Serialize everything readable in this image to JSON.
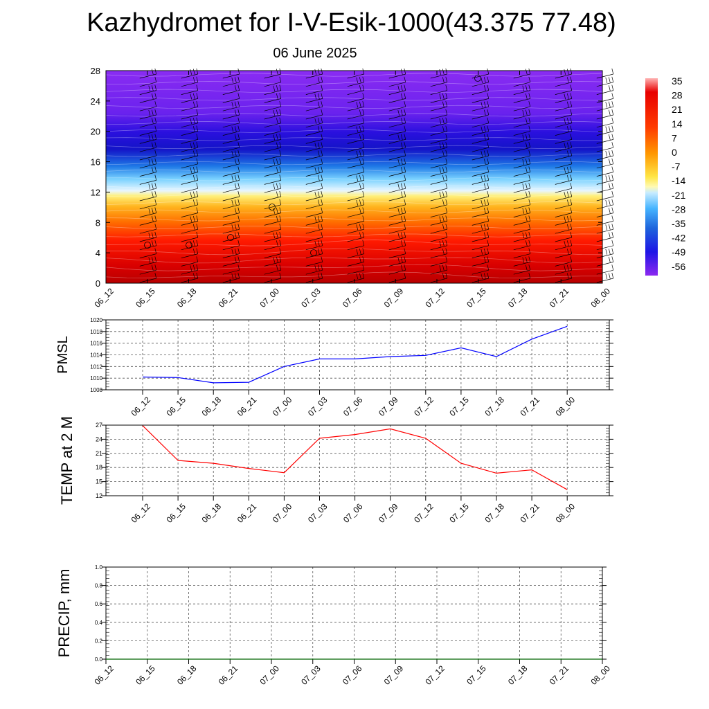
{
  "title": "Kazhydromet for I-V-Esik-1000(43.375 77.48)",
  "subtitle": "06 June 2025",
  "chart_data": [
    {
      "type": "heatmap",
      "name": "temperature-height cross section with wind barbs",
      "x_ticks": [
        "06_12",
        "06_15",
        "06_18",
        "06_21",
        "07_00",
        "07_03",
        "07_06",
        "07_09",
        "07_12",
        "07_15",
        "07_18",
        "07_21",
        "08_00"
      ],
      "y_ticks": [
        0,
        4,
        8,
        12,
        16,
        20,
        24,
        28
      ],
      "ylim": [
        0,
        28
      ],
      "colorbar_labels": [
        35,
        28,
        21,
        14,
        7,
        0,
        -7,
        -14,
        -21,
        -28,
        -35,
        -42,
        -49,
        -56
      ],
      "colors": [
        "#c00000",
        "#ff0000",
        "#ff7800",
        "#ffc832",
        "#fff46e",
        "#5ac8ff",
        "#0a64dc",
        "#0000c8",
        "#3c14e6",
        "#8c28f0"
      ]
    },
    {
      "type": "line",
      "ylabel": "PMSL",
      "x": [
        "06_12",
        "06_15",
        "06_18",
        "06_21",
        "07_00",
        "07_03",
        "07_06",
        "07_09",
        "07_12",
        "07_15",
        "07_18",
        "07_21",
        "08_00"
      ],
      "values": [
        1010.2,
        1010.1,
        1009.2,
        1009.3,
        1012.0,
        1013.3,
        1013.3,
        1013.7,
        1013.9,
        1015.2,
        1013.7,
        1016.7,
        1018.9
      ],
      "ylim": [
        1008,
        1020
      ],
      "y_ticks": [
        1008,
        1010,
        1012,
        1014,
        1016,
        1018,
        1020
      ],
      "color": "#0000ff"
    },
    {
      "type": "line",
      "ylabel": "TEMP at 2 M",
      "x": [
        "06_12",
        "06_15",
        "06_18",
        "06_21",
        "07_00",
        "07_03",
        "07_06",
        "07_09",
        "07_12",
        "07_15",
        "07_18",
        "07_21",
        "08_00"
      ],
      "values": [
        26.9,
        19.5,
        18.9,
        17.8,
        16.9,
        24.2,
        25.0,
        26.2,
        24.2,
        18.9,
        16.8,
        17.5,
        13.3
      ],
      "ylim": [
        12,
        27
      ],
      "y_ticks": [
        12,
        15,
        18,
        21,
        24,
        27
      ],
      "color": "#ff0000"
    },
    {
      "type": "line",
      "ylabel": "PRECIP, mm",
      "x": [
        "06_12",
        "06_15",
        "06_18",
        "06_21",
        "07_00",
        "07_03",
        "07_06",
        "07_09",
        "07_12",
        "07_15",
        "07_18",
        "07_21",
        "08_00"
      ],
      "values": [
        0,
        0,
        0,
        0,
        0,
        0,
        0,
        0,
        0,
        0,
        0,
        0,
        0
      ],
      "ylim": [
        0,
        1
      ],
      "y_ticks": [
        "0.0",
        "0.2",
        "0.4",
        "0.6",
        "0.8",
        "1.0"
      ],
      "color": "#006400"
    }
  ]
}
